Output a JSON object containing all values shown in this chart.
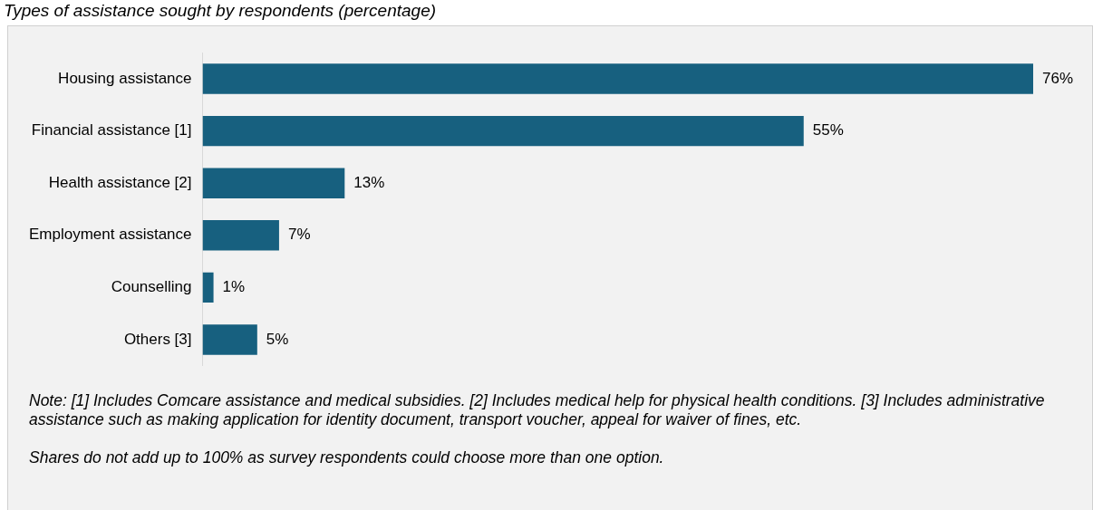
{
  "chart_data": {
    "type": "bar",
    "orientation": "horizontal",
    "title": "Types of assistance sought by respondents (percentage)",
    "categories": [
      "Housing assistance",
      "Financial assistance [1]",
      "Health assistance [2]",
      "Employment assistance",
      "Counselling",
      "Others [3]"
    ],
    "values": [
      76,
      55,
      13,
      7,
      1,
      5
    ],
    "value_labels": [
      "76%",
      "55%",
      "13%",
      "7%",
      "1%",
      "5%"
    ],
    "color": "#17607f",
    "legend": false,
    "tick_labels": "y",
    "annotations": [
      "Note: [1] Includes Comcare assistance and medical subsidies. [2] Includes medical help for physical health conditions. [3] Includes administrative assistance such as making application for identity document, transport voucher, appeal for waiver of fines, etc.",
      "Shares do not add up to 100% as survey respondents could choose more than one option."
    ]
  }
}
